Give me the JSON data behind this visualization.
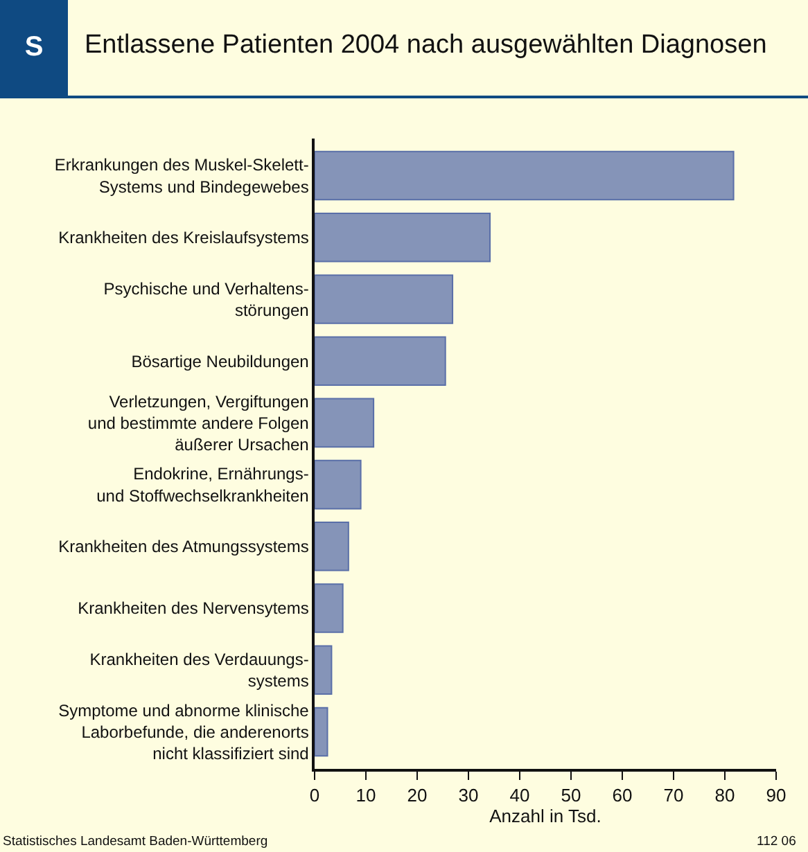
{
  "chart_data": {
    "type": "bar",
    "orientation": "horizontal",
    "title": "Entlassene Patienten 2004 nach ausgewählten Diagnosen",
    "xlabel": "Anzahl in Tsd.",
    "categories": [
      "Erkrankungen des Muskel-Skelett-\nSystems und Bindegewebes",
      "Krankheiten des Kreislaufsystems",
      "Psychische und Verhaltens-\nstörungen",
      "Bösartige Neubildungen",
      "Verletzungen, Vergiftungen\nund bestimmte andere Folgen\näußerer Ursachen",
      "Endokrine, Ernährungs-\nund Stoffwechselkrankheiten",
      "Krankheiten des Atmungssystems",
      "Krankheiten des Nervensytems",
      "Krankheiten des Verdauungs-\nsystems",
      "Symptome und abnorme klinische\nLaborbefunde, die anderenorts\nnicht klassifiziert sind"
    ],
    "values": [
      81.7,
      34.2,
      26.9,
      25.5,
      11.5,
      9.0,
      6.6,
      5.5,
      3.3,
      2.5
    ],
    "color": "#8594b8",
    "xlim": [
      0,
      90
    ],
    "xticks": [
      0,
      10,
      20,
      30,
      40,
      50,
      60,
      70,
      80,
      90
    ],
    "annotations": [
      "S",
      "Statistisches Landesamt Baden-Württemberg",
      "112 06"
    ]
  }
}
